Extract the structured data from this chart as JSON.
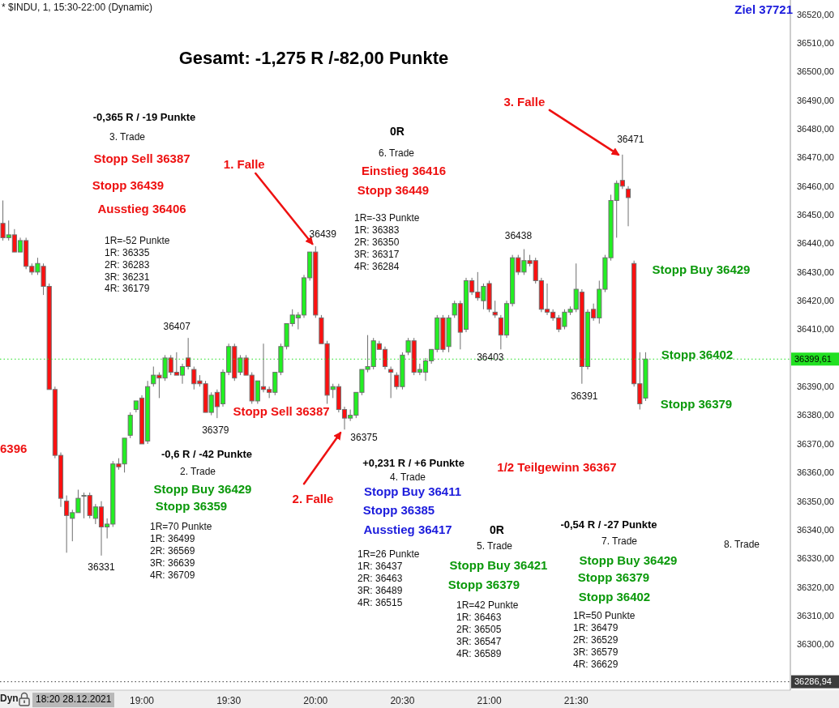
{
  "chart_data": {
    "type": "candlestick",
    "title": "* $INDU, 1, 15:30-22:00 (Dynamic)",
    "subtitle": "Gesamt: -1,275 R /-82,00 Punkte",
    "x": [
      "2021-12-28T18:12",
      "2021-12-28T18:14",
      "2021-12-28T18:16",
      "2021-12-28T18:18",
      "2021-12-28T18:20",
      "2021-12-28T18:22",
      "2021-12-28T18:24",
      "2021-12-28T18:26",
      "2021-12-28T18:28",
      "2021-12-28T18:30",
      "2021-12-28T18:32",
      "2021-12-28T18:34",
      "2021-12-28T18:36",
      "2021-12-28T18:38",
      "2021-12-28T18:40",
      "2021-12-28T18:42",
      "2021-12-28T18:44",
      "2021-12-28T18:46",
      "2021-12-28T18:48",
      "2021-12-28T18:50",
      "2021-12-28T18:52",
      "2021-12-28T18:54",
      "2021-12-28T18:56",
      "2021-12-28T18:58",
      "2021-12-28T19:00",
      "2021-12-28T19:02",
      "2021-12-28T19:04",
      "2021-12-28T19:06",
      "2021-12-28T19:08",
      "2021-12-28T19:10",
      "2021-12-28T19:12",
      "2021-12-28T19:14",
      "2021-12-28T19:16",
      "2021-12-28T19:18",
      "2021-12-28T19:20",
      "2021-12-28T19:22",
      "2021-12-28T19:24",
      "2021-12-28T19:26",
      "2021-12-28T19:28",
      "2021-12-28T19:30",
      "2021-12-28T19:32",
      "2021-12-28T19:34",
      "2021-12-28T19:36",
      "2021-12-28T19:38",
      "2021-12-28T19:40",
      "2021-12-28T19:42",
      "2021-12-28T19:44",
      "2021-12-28T19:46",
      "2021-12-28T19:48",
      "2021-12-28T19:50",
      "2021-12-28T19:52",
      "2021-12-28T19:54",
      "2021-12-28T19:56",
      "2021-12-28T19:58",
      "2021-12-28T20:00",
      "2021-12-28T20:02",
      "2021-12-28T20:04",
      "2021-12-28T20:06",
      "2021-12-28T20:08",
      "2021-12-28T20:10",
      "2021-12-28T20:12",
      "2021-12-28T20:14",
      "2021-12-28T20:16",
      "2021-12-28T20:18",
      "2021-12-28T20:20",
      "2021-12-28T20:22",
      "2021-12-28T20:24",
      "2021-12-28T20:26",
      "2021-12-28T20:28",
      "2021-12-28T20:30",
      "2021-12-28T20:32",
      "2021-12-28T20:34",
      "2021-12-28T20:36",
      "2021-12-28T20:38",
      "2021-12-28T20:40",
      "2021-12-28T20:42",
      "2021-12-28T20:44",
      "2021-12-28T20:46",
      "2021-12-28T20:48",
      "2021-12-28T20:50",
      "2021-12-28T20:52",
      "2021-12-28T20:54",
      "2021-12-28T20:56",
      "2021-12-28T20:58",
      "2021-12-28T21:00",
      "2021-12-28T21:02",
      "2021-12-28T21:04",
      "2021-12-28T21:06",
      "2021-12-28T21:08",
      "2021-12-28T21:10",
      "2021-12-28T21:12",
      "2021-12-28T21:14",
      "2021-12-28T21:16",
      "2021-12-28T21:18",
      "2021-12-28T21:20",
      "2021-12-28T21:22",
      "2021-12-28T21:24",
      "2021-12-28T21:26",
      "2021-12-28T21:28",
      "2021-12-28T21:30",
      "2021-12-28T21:32",
      "2021-12-28T21:34",
      "2021-12-28T21:36",
      "2021-12-28T21:38",
      "2021-12-28T21:40",
      "2021-12-28T21:42",
      "2021-12-28T21:44",
      "2021-12-28T21:46",
      "2021-12-28T21:48",
      "2021-12-28T21:50",
      "2021-12-28T21:52",
      "2021-12-28T21:54"
    ],
    "ohlc": [
      [
        36447,
        36455,
        36441,
        36442
      ],
      [
        36442,
        36448,
        36441,
        36443
      ],
      [
        36443,
        36445,
        36437,
        36437
      ],
      [
        36437,
        36442,
        36437,
        36441
      ],
      [
        36441,
        36442,
        36431,
        36432
      ],
      [
        36432,
        36433,
        36429,
        36430
      ],
      [
        36430,
        36435,
        36429,
        36433
      ],
      [
        36432,
        36433,
        36422,
        36425
      ],
      [
        36425,
        36426,
        36389,
        36389
      ],
      [
        36389,
        36390,
        36365,
        36366
      ],
      [
        36366,
        36367,
        36348,
        36351
      ],
      [
        36350,
        36352,
        36332,
        36345
      ],
      [
        36344,
        36347,
        36336,
        36346
      ],
      [
        36346,
        36354,
        36346,
        36351
      ],
      [
        36352,
        36353,
        36344,
        36352
      ],
      [
        36352,
        36353,
        36344,
        36345
      ],
      [
        36344,
        36349,
        36342,
        36348
      ],
      [
        36348,
        36350,
        36331,
        36341
      ],
      [
        36341,
        36344,
        36337,
        36342
      ],
      [
        36342,
        36364,
        36341,
        36363
      ],
      [
        36363,
        36365,
        36361,
        36362
      ],
      [
        36363,
        36372,
        36360,
        36372
      ],
      [
        36373,
        36381,
        36372,
        36380
      ],
      [
        36382,
        36385,
        36381,
        36385
      ],
      [
        36386,
        36387,
        36370,
        36370
      ],
      [
        36371,
        36392,
        36370,
        36390
      ],
      [
        36391,
        36397,
        36390,
        36394
      ],
      [
        36394,
        36395,
        36386,
        36393
      ],
      [
        36393,
        36401,
        36392,
        36400
      ],
      [
        36400,
        36401,
        36394,
        36395
      ],
      [
        36395,
        36402,
        36394,
        36394
      ],
      [
        36394,
        36398,
        36391,
        36397
      ],
      [
        36400,
        36407,
        36396,
        36397
      ],
      [
        36396,
        36397,
        36389,
        36391
      ],
      [
        36392,
        36394,
        36390,
        36391
      ],
      [
        36391,
        36392,
        36381,
        36381
      ],
      [
        36381,
        36388,
        36380,
        36387
      ],
      [
        36388,
        36389,
        36379,
        36383
      ],
      [
        36384,
        36396,
        36383,
        36395
      ],
      [
        36395,
        36405,
        36394,
        36404
      ],
      [
        36404,
        36405,
        36392,
        36393
      ],
      [
        36395,
        36401,
        36394,
        36400
      ],
      [
        36400,
        36401,
        36394,
        36394
      ],
      [
        36394,
        36395,
        36384,
        36385
      ],
      [
        36385,
        36392,
        36384,
        36392
      ],
      [
        36390,
        36405,
        36388,
        36389
      ],
      [
        36389,
        36390,
        36386,
        36388
      ],
      [
        36388,
        36395,
        36387,
        36395
      ],
      [
        36395,
        36405,
        36394,
        36404
      ],
      [
        36404,
        36412,
        36403,
        36412
      ],
      [
        36412,
        36417,
        36411,
        36415
      ],
      [
        36414,
        36416,
        36410,
        36415
      ],
      [
        36415,
        36429,
        36414,
        36428
      ],
      [
        36428,
        36437,
        36427,
        36437
      ],
      [
        36437,
        36439,
        36414,
        36415
      ],
      [
        36414,
        36415,
        36405,
        36405
      ],
      [
        36405,
        36406,
        36384,
        36387
      ],
      [
        36389,
        36391,
        36386,
        36390
      ],
      [
        36390,
        36391,
        36381,
        36382
      ],
      [
        36382,
        36383,
        36375,
        36379
      ],
      [
        36379,
        36382,
        36378,
        36380
      ],
      [
        36380,
        36388,
        36379,
        36388
      ],
      [
        36388,
        36396,
        36387,
        36396
      ],
      [
        36396,
        36408,
        36395,
        36397
      ],
      [
        36397,
        36407,
        36396,
        36406
      ],
      [
        36405,
        36406,
        36403,
        36403
      ],
      [
        36403,
        36404,
        36396,
        36397
      ],
      [
        36396,
        36397,
        36386,
        36395
      ],
      [
        36394,
        36395,
        36389,
        36390
      ],
      [
        36390,
        36402,
        36389,
        36401
      ],
      [
        36402,
        36407,
        36401,
        36406
      ],
      [
        36406,
        36407,
        36394,
        36395
      ],
      [
        36395,
        36398,
        36394,
        36396
      ],
      [
        36395,
        36400,
        36392,
        36399
      ],
      [
        36399,
        36403,
        36398,
        36403
      ],
      [
        36403,
        36415,
        36402,
        36414
      ],
      [
        36414,
        36415,
        36402,
        36403
      ],
      [
        36404,
        36415,
        36402,
        36414
      ],
      [
        36415,
        36420,
        36414,
        36419
      ],
      [
        36419,
        36420,
        36403,
        36409
      ],
      [
        36410,
        36428,
        36409,
        36427
      ],
      [
        36427,
        36428,
        36422,
        36423
      ],
      [
        36423,
        36430,
        36420,
        36421
      ],
      [
        36420,
        36426,
        36417,
        36425
      ],
      [
        36426,
        36427,
        36416,
        36417
      ],
      [
        36416,
        36420,
        36414,
        36415
      ],
      [
        36414,
        36415,
        36403,
        36408
      ],
      [
        36408,
        36420,
        36407,
        36419
      ],
      [
        36419,
        36436,
        36418,
        36435
      ],
      [
        36435,
        36436,
        36429,
        36430
      ],
      [
        36430,
        36438,
        36429,
        36434
      ],
      [
        36434,
        36436,
        36432,
        36433
      ],
      [
        36434,
        36435,
        36426,
        36427
      ],
      [
        36427,
        36428,
        36416,
        36417
      ],
      [
        36417,
        36426,
        36415,
        36416
      ],
      [
        36416,
        36417,
        36413,
        36414
      ],
      [
        36414,
        36415,
        36409,
        36410
      ],
      [
        36411,
        36417,
        36410,
        36416
      ],
      [
        36416,
        36418,
        36415,
        36417
      ],
      [
        36417,
        36433,
        36416,
        36424
      ],
      [
        36423,
        36424,
        36391,
        36397
      ],
      [
        36397,
        36417,
        36396,
        36416
      ],
      [
        36417,
        36419,
        36413,
        36414
      ],
      [
        36414,
        36427,
        36412,
        36424
      ],
      [
        36424,
        36436,
        36423,
        36435
      ],
      [
        36435,
        36457,
        36434,
        36455
      ],
      [
        36455,
        36462,
        36442,
        36461
      ],
      [
        36462,
        36471,
        36459,
        36460
      ],
      [
        36459,
        36460,
        36446,
        36456
      ],
      [
        36433,
        36434,
        36390,
        36391
      ],
      [
        36391,
        36402,
        36382,
        36384
      ],
      [
        36386,
        36402,
        36385,
        36399.61
      ]
    ],
    "colors": [
      "#ff1010",
      "#22f022",
      "#ff1010",
      "#22f022",
      "#ff1010",
      "#ff1010",
      "#22f022",
      "#ff1010",
      "#ff1010",
      "#ff1010",
      "#ff1010",
      "#ff1010",
      "#22f022",
      "#22f022",
      "#22f022",
      "#ff1010",
      "#22f022",
      "#ff1010",
      "#22f022",
      "#22f022",
      "#ff1010",
      "#22f022",
      "#22f022",
      "#22f022",
      "#ff1010",
      "#22f022",
      "#22f022",
      "#ff1010",
      "#22f022",
      "#ff1010",
      "#ff1010",
      "#22f022",
      "#ff1010",
      "#ff1010",
      "#ff1010",
      "#ff1010",
      "#22f022",
      "#ff1010",
      "#22f022",
      "#22f022",
      "#ff1010",
      "#22f022",
      "#ff1010",
      "#ff1010",
      "#22f022",
      "#ff1010",
      "#ff1010",
      "#22f022",
      "#22f022",
      "#22f022",
      "#22f022",
      "#22f022",
      "#22f022",
      "#22f022",
      "#ff1010",
      "#ff1010",
      "#ff1010",
      "#22f022",
      "#ff1010",
      "#ff1010",
      "#22f022",
      "#22f022",
      "#22f022",
      "#22f022",
      "#22f022",
      "#ff1010",
      "#ff1010",
      "#ff1010",
      "#ff1010",
      "#22f022",
      "#22f022",
      "#ff1010",
      "#22f022",
      "#22f022",
      "#22f022",
      "#22f022",
      "#ff1010",
      "#22f022",
      "#22f022",
      "#ff1010",
      "#22f022",
      "#ff1010",
      "#ff1010",
      "#22f022",
      "#ff1010",
      "#ff1010",
      "#ff1010",
      "#22f022",
      "#22f022",
      "#ff1010",
      "#22f022",
      "#ff1010",
      "#ff1010",
      "#ff1010",
      "#ff1010",
      "#ff1010",
      "#ff1010",
      "#22f022",
      "#22f022",
      "#22f022",
      "#ff1010",
      "#22f022",
      "#ff1010",
      "#22f022",
      "#22f022",
      "#22f022",
      "#22f022",
      "#ff1010",
      "#ff1010",
      "#ff1010",
      "#ff1010",
      "#22f022"
    ],
    "xlim": [
      "2021-12-28T18:11",
      "2021-12-28T22:44"
    ],
    "xticks": [
      {
        "value": "2021-12-28T19:00",
        "label": "19:00"
      },
      {
        "value": "2021-12-28T19:30",
        "label": "19:30"
      },
      {
        "value": "2021-12-28T20:00",
        "label": "20:00"
      },
      {
        "value": "2021-12-28T20:30",
        "label": "20:30"
      },
      {
        "value": "2021-12-28T21:00",
        "label": "21:00"
      },
      {
        "value": "2021-12-28T21:30",
        "label": "21:30"
      }
    ],
    "ylim": [
      36284,
      36525
    ],
    "yticks": [
      {
        "value": 36300,
        "label": "36300,00"
      },
      {
        "value": 36310,
        "label": "36310,00"
      },
      {
        "value": 36320,
        "label": "36320,00"
      },
      {
        "value": 36330,
        "label": "36330,00"
      },
      {
        "value": 36340,
        "label": "36340,00"
      },
      {
        "value": 36350,
        "label": "36350,00"
      },
      {
        "value": 36360,
        "label": "36360,00"
      },
      {
        "value": 36370,
        "label": "36370,00"
      },
      {
        "value": 36380,
        "label": "36380,00"
      },
      {
        "value": 36390,
        "label": "36390,00"
      },
      {
        "value": 36410,
        "label": "36410,00"
      },
      {
        "value": 36420,
        "label": "36420,00"
      },
      {
        "value": 36430,
        "label": "36430,00"
      },
      {
        "value": 36440,
        "label": "36440,00"
      },
      {
        "value": 36450,
        "label": "36450,00"
      },
      {
        "value": 36460,
        "label": "36460,00"
      },
      {
        "value": 36470,
        "label": "36470,00"
      },
      {
        "value": 36480,
        "label": "36480,00"
      },
      {
        "value": 36490,
        "label": "36490,00"
      },
      {
        "value": 36500,
        "label": "36500,00"
      },
      {
        "value": 36510,
        "label": "36510,00"
      },
      {
        "value": 36520,
        "label": "36520,00"
      }
    ],
    "ref_lines": [
      {
        "axis": "y",
        "value": 36399.61,
        "label": "36399,61",
        "color": "#22e022",
        "line_style": "dotted"
      },
      {
        "axis": "y",
        "value": 36286.94,
        "label": "36286,94",
        "color": "#3c3c3c",
        "line_style": "dotted"
      }
    ],
    "annotations": [
      "Ziel 37721",
      "-0,365 R / -19 Punkte",
      "3. Trade",
      "Stopp Sell 36387",
      "Stopp 36439",
      "Ausstieg 36406",
      "1R=-52 Punkte",
      "1R: 36335",
      "2R: 36283",
      "3R: 36231",
      "4R: 36179",
      {
        "text": "1. Falle",
        "x": "2021-12-28T20:00",
        "y": 36439
      },
      {
        "text": "36439",
        "x": "2021-12-28T20:00",
        "y": 36439
      },
      "0R",
      "6. Trade",
      "Einstieg 36416",
      "Stopp 36449",
      "1R=-33 Punkte",
      "1R: 36383",
      "2R: 36350",
      "3R: 36317",
      "4R: 36284",
      {
        "text": "3. Falle",
        "x": "2021-12-28T21:46",
        "y": 36471
      },
      {
        "text": "36471",
        "x": "2021-12-28T21:46",
        "y": 36471
      },
      {
        "text": "36438",
        "x": "2021-12-28T21:12",
        "y": 36438
      },
      "Stopp Buy 36429",
      "Stopp 36402",
      "Stopp 36379",
      {
        "text": "36407",
        "x": "2021-12-28T19:16",
        "y": 36407
      },
      {
        "text": "36379",
        "x": "2021-12-28T19:26",
        "y": 36379
      },
      "Stopp Sell 36387",
      "6396",
      {
        "text": "36331",
        "x": "2021-12-28T18:46",
        "y": 36331
      },
      "-0,6 R / -42 Punkte",
      "2. Trade",
      "Stopp Buy 36429",
      "Stopp 36359",
      "1R=70 Punkte",
      "1R: 36499",
      "2R: 36569",
      "3R: 36639",
      "4R: 36709",
      {
        "text": "2. Falle",
        "x": "2021-12-28T20:10",
        "y": 36375
      },
      {
        "text": "36375",
        "x": "2021-12-28T20:10",
        "y": 36375
      },
      "+0,231 R / +6 Punkte",
      "4. Trade",
      "Stopp Buy 36411",
      "Stopp 36385",
      "Ausstieg 36417",
      "1R=26 Punkte",
      "1R: 36437",
      "2R: 36463",
      "3R: 36489",
      "4R: 36515",
      {
        "text": "36403",
        "x": "2021-12-28T21:04",
        "y": 36403
      },
      "1/2 Teilgewinn 36367",
      {
        "text": "36391",
        "x": "2021-12-28T21:32",
        "y": 36391
      },
      "0R",
      "5. Trade",
      "Stopp Buy 36421",
      "Stopp 36379",
      "1R=42 Punkte",
      "1R: 36463",
      "2R: 36505",
      "3R: 36547",
      "4R: 36589",
      "-0,54 R / -27 Punkte",
      "7. Trade",
      "Stopp Buy 36429",
      "Stopp 36379",
      "Stopp 36402",
      "1R=50 Punkte",
      "1R: 36479",
      "2R: 36529",
      "3R: 36579",
      "4R: 36629",
      "8. Trade",
      "Dyn",
      "18:20 28.12.2021"
    ]
  }
}
